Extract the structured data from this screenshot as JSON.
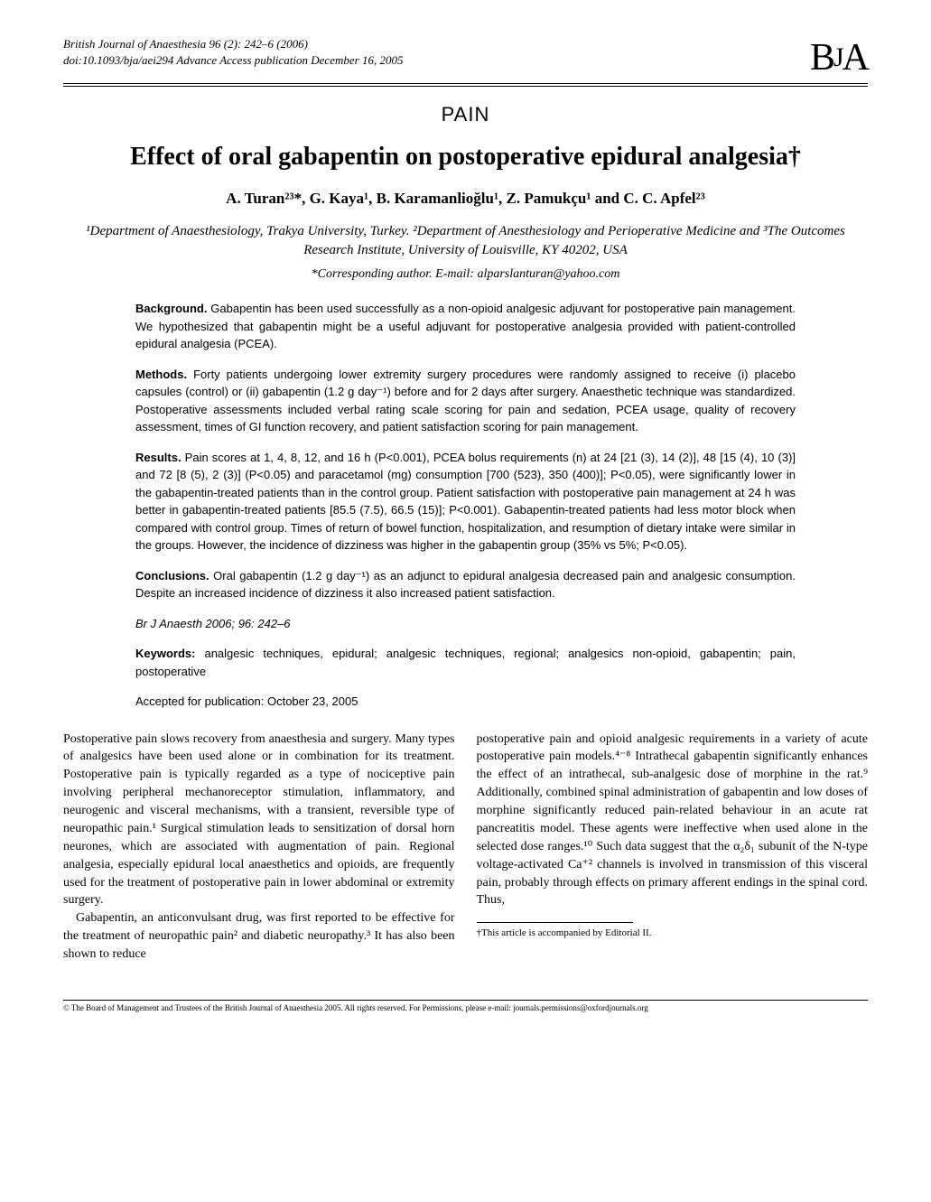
{
  "header": {
    "journal_line": "British Journal of Anaesthesia 96 (2): 242–6 (2006)",
    "doi_line": "doi:10.1093/bja/aei294  Advance Access publication December 16, 2005",
    "logo_b": "B",
    "logo_j": "J",
    "logo_a": "A"
  },
  "section_label": "PAIN",
  "title": "Effect of oral gabapentin on postoperative epidural analgesia†",
  "authors": "A. Turan²³*, G. Kaya¹, B. Karamanlioğlu¹, Z. Pamukçu¹ and C. C. Apfel²³",
  "affiliations": "¹Department of Anaesthesiology, Trakya University, Turkey. ²Department of Anesthesiology and Perioperative Medicine and ³The Outcomes Research Institute, University of Louisville, KY 40202, USA",
  "corresponding": "*Corresponding author. E-mail: alparslanturan@yahoo.com",
  "abstract": {
    "background_label": "Background.",
    "background": " Gabapentin has been used successfully as a non-opioid analgesic adjuvant for postoperative pain management. We hypothesized that gabapentin might be a useful adjuvant for postoperative analgesia provided with patient-controlled epidural analgesia (PCEA).",
    "methods_label": "Methods.",
    "methods": " Forty patients undergoing lower extremity surgery procedures were randomly assigned to receive (i) placebo capsules (control) or (ii) gabapentin (1.2 g day⁻¹) before and for 2 days after surgery. Anaesthetic technique was standardized. Postoperative assessments included verbal rating scale scoring for pain and sedation, PCEA usage, quality of recovery assessment, times of GI function recovery, and patient satisfaction scoring for pain management.",
    "results_label": "Results.",
    "results": " Pain scores at 1, 4, 8, 12, and 16 h (P<0.001), PCEA bolus requirements (n) at 24 [21 (3), 14 (2)], 48 [15 (4), 10 (3)] and 72 [8 (5), 2 (3)] (P<0.05) and paracetamol (mg) consumption [700 (523), 350 (400)]; P<0.05), were significantly lower in the gabapentin-treated patients than in the control group. Patient satisfaction with postoperative pain management at 24 h was better in gabapentin-treated patients [85.5 (7.5), 66.5 (15)]; P<0.001). Gabapentin-treated patients had less motor block when compared with control group. Times of return of bowel function, hospitalization, and resumption of dietary intake were similar in the groups. However, the incidence of dizziness was higher in the gabapentin group (35% vs 5%; P<0.05).",
    "conclusions_label": "Conclusions.",
    "conclusions": " Oral gabapentin (1.2 g day⁻¹) as an adjunct to epidural analgesia decreased pain and analgesic consumption. Despite an increased incidence of dizziness it also increased patient satisfaction.",
    "citation": "Br J Anaesth 2006; 96: 242–6",
    "keywords_label": "Keywords:",
    "keywords": " analgesic techniques, epidural; analgesic techniques, regional; analgesics non-opioid, gabapentin; pain, postoperative",
    "accepted": "Accepted for publication: October 23, 2005"
  },
  "body": {
    "col1_p1": "Postoperative pain slows recovery from anaesthesia and surgery. Many types of analgesics have been used alone or in combination for its treatment. Postoperative pain is typically regarded as a type of nociceptive pain involving peripheral mechanoreceptor stimulation, inflammatory, and neurogenic and visceral mechanisms, with a transient, reversible type of neuropathic pain.¹ Surgical stimulation leads to sensitization of dorsal horn neurones, which are associated with augmentation of pain. Regional analgesia, especially epidural local anaesthetics and opioids, are frequently used for the treatment of postoperative pain in lower abdominal or extremity surgery.",
    "col1_p2": "Gabapentin, an anticonvulsant drug, was first reported to be effective for the treatment of neuropathic pain² and diabetic neuropathy.³ It has also been shown to reduce",
    "col2_p1": "postoperative pain and opioid analgesic requirements in a variety of acute postoperative pain models.⁴⁻⁸ Intrathecal gabapentin significantly enhances the effect of an intrathecal, sub-analgesic dose of morphine in the rat.⁹ Additionally, combined spinal administration of gabapentin and low doses of morphine significantly reduced pain-related behaviour in an acute rat pancreatitis model. These agents were ineffective when used alone in the selected dose ranges.¹⁰ Such data suggest that the α₂δ₁ subunit of the N-type voltage-activated Ca⁺² channels is involved in transmission of this visceral pain, probably through effects on primary afferent endings in the spinal cord. Thus,"
  },
  "footnote": "†This article is accompanied by Editorial II.",
  "copyright": "© The Board of Management and Trustees of the British Journal of Anaesthesia 2005. All rights reserved. For Permissions, please e-mail: journals.permissions@oxfordjournals.org"
}
